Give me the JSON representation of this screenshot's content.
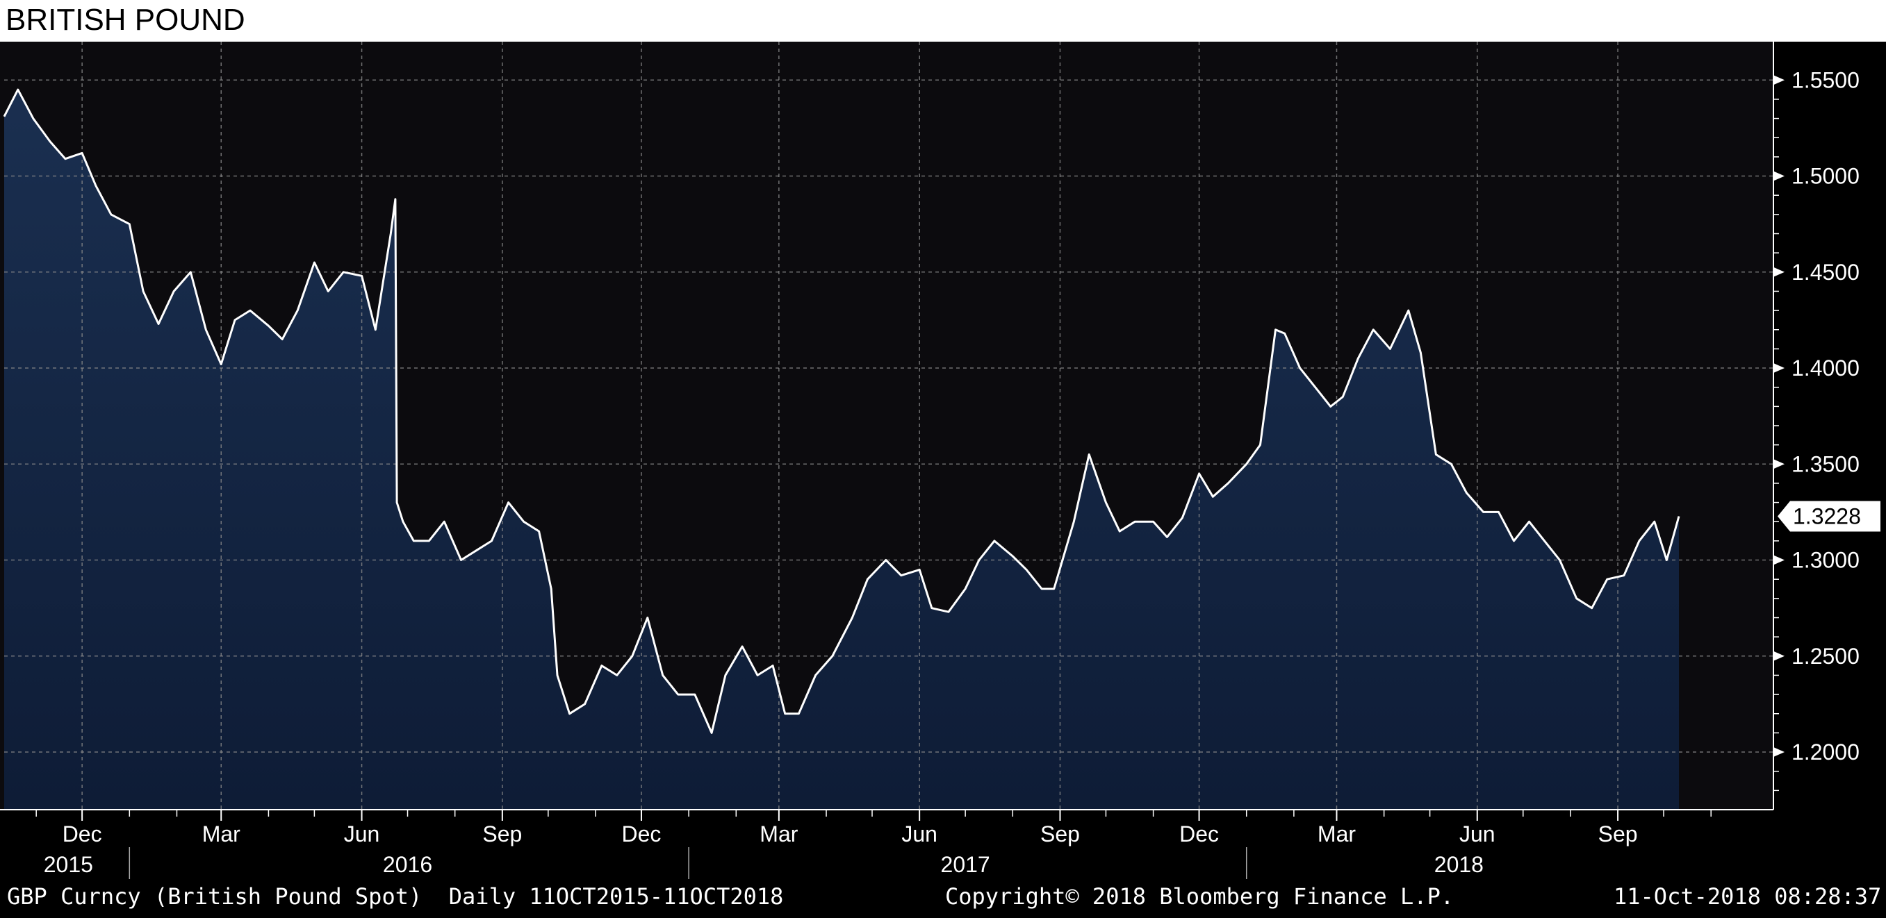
{
  "chart_data": {
    "type": "area",
    "title": "BRITISH POUND",
    "ylim": [
      1.17,
      1.57
    ],
    "y_ticks": [
      "1.2000",
      "1.2500",
      "1.3000",
      "1.3500",
      "1.4000",
      "1.4500",
      "1.5000",
      "1.5500"
    ],
    "x_month_ticks": [
      "Dec",
      "Mar",
      "Jun",
      "Sep",
      "Dec",
      "Mar",
      "Jun",
      "Sep",
      "Dec",
      "Mar",
      "Jun",
      "Sep"
    ],
    "x_year_labels": [
      "2015",
      "2016",
      "2017",
      "2018"
    ],
    "last_value_label": "1.3228",
    "grid": true,
    "colors": {
      "background": "#0c0b0e",
      "area_top": "#1a2f50",
      "area_bottom": "#0e1c36",
      "line": "#ffffff"
    },
    "series": [
      {
        "x": [
          "2015-10-11",
          "2015-10-20",
          "2015-10-30",
          "2015-11-10",
          "2015-11-20",
          "2015-12-01",
          "2015-12-10",
          "2015-12-20",
          "2016-01-01",
          "2016-01-10",
          "2016-01-20",
          "2016-01-30",
          "2016-02-10",
          "2016-02-20",
          "2016-03-01",
          "2016-03-10",
          "2016-03-20",
          "2016-04-01",
          "2016-04-10",
          "2016-04-20",
          "2016-05-01",
          "2016-05-10",
          "2016-05-20",
          "2016-06-01",
          "2016-06-10",
          "2016-06-20",
          "2016-06-23",
          "2016-06-24",
          "2016-06-28",
          "2016-07-05",
          "2016-07-15",
          "2016-07-25",
          "2016-08-05",
          "2016-08-15",
          "2016-08-25",
          "2016-09-05",
          "2016-09-15",
          "2016-09-25",
          "2016-10-03",
          "2016-10-07",
          "2016-10-15",
          "2016-10-25",
          "2016-11-05",
          "2016-11-15",
          "2016-11-25",
          "2016-12-05",
          "2016-12-15",
          "2016-12-25",
          "2017-01-05",
          "2017-01-16",
          "2017-01-25",
          "2017-02-05",
          "2017-02-15",
          "2017-02-25",
          "2017-03-05",
          "2017-03-14",
          "2017-03-25",
          "2017-04-05",
          "2017-04-18",
          "2017-04-28",
          "2017-05-10",
          "2017-05-20",
          "2017-06-01",
          "2017-06-09",
          "2017-06-20",
          "2017-07-01",
          "2017-07-10",
          "2017-07-20",
          "2017-08-01",
          "2017-08-10",
          "2017-08-20",
          "2017-08-28",
          "2017-09-10",
          "2017-09-20",
          "2017-10-01",
          "2017-10-10",
          "2017-10-20",
          "2017-11-01",
          "2017-11-10",
          "2017-11-20",
          "2017-12-01",
          "2017-12-10",
          "2017-12-20",
          "2018-01-01",
          "2018-01-10",
          "2018-01-20",
          "2018-01-26",
          "2018-02-05",
          "2018-02-15",
          "2018-02-25",
          "2018-03-05",
          "2018-03-15",
          "2018-03-25",
          "2018-04-05",
          "2018-04-17",
          "2018-04-25",
          "2018-05-05",
          "2018-05-15",
          "2018-05-25",
          "2018-06-05",
          "2018-06-15",
          "2018-06-25",
          "2018-07-05",
          "2018-07-15",
          "2018-07-25",
          "2018-08-05",
          "2018-08-15",
          "2018-08-25",
          "2018-09-05",
          "2018-09-15",
          "2018-09-25",
          "2018-10-03",
          "2018-10-11"
        ],
        "values": [
          1.531,
          1.545,
          1.53,
          1.518,
          1.509,
          1.512,
          1.495,
          1.48,
          1.475,
          1.44,
          1.423,
          1.44,
          1.45,
          1.42,
          1.402,
          1.425,
          1.43,
          1.422,
          1.415,
          1.43,
          1.455,
          1.44,
          1.45,
          1.448,
          1.42,
          1.47,
          1.488,
          1.33,
          1.32,
          1.31,
          1.31,
          1.32,
          1.3,
          1.305,
          1.31,
          1.33,
          1.32,
          1.315,
          1.285,
          1.24,
          1.22,
          1.225,
          1.245,
          1.24,
          1.25,
          1.27,
          1.24,
          1.23,
          1.23,
          1.21,
          1.24,
          1.255,
          1.24,
          1.245,
          1.22,
          1.22,
          1.24,
          1.25,
          1.27,
          1.29,
          1.3,
          1.292,
          1.295,
          1.275,
          1.273,
          1.285,
          1.3,
          1.31,
          1.302,
          1.295,
          1.285,
          1.285,
          1.32,
          1.355,
          1.33,
          1.315,
          1.32,
          1.32,
          1.312,
          1.322,
          1.345,
          1.333,
          1.34,
          1.35,
          1.36,
          1.42,
          1.418,
          1.4,
          1.39,
          1.38,
          1.385,
          1.405,
          1.42,
          1.41,
          1.43,
          1.408,
          1.355,
          1.35,
          1.335,
          1.325,
          1.325,
          1.31,
          1.32,
          1.31,
          1.3,
          1.28,
          1.275,
          1.29,
          1.292,
          1.31,
          1.32,
          1.3,
          1.3228
        ]
      }
    ]
  },
  "footer": {
    "left": "GBP Curncy (British Pound Spot)  Daily 11OCT2015-11OCT2018",
    "center": "Copyright© 2018 Bloomberg Finance L.P.",
    "right": "11-Oct-2018 08:28:37"
  }
}
